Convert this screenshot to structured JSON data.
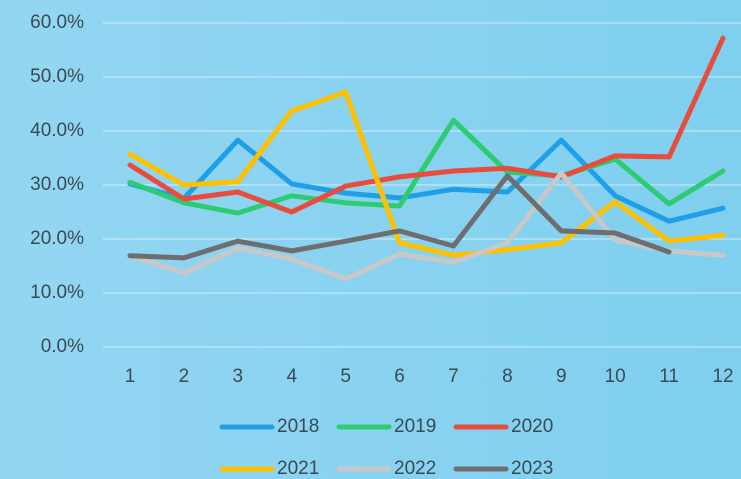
{
  "chart_data": {
    "type": "line",
    "categories": [
      "1",
      "2",
      "3",
      "4",
      "5",
      "6",
      "7",
      "8",
      "9",
      "10",
      "11",
      "12"
    ],
    "series": [
      {
        "name": "2018",
        "color": "#1e9fe8",
        "values": [
          30.2,
          27.5,
          38.3,
          30.2,
          28.5,
          27.6,
          29.2,
          28.7,
          38.3,
          28.0,
          23.3,
          25.7
        ]
      },
      {
        "name": "2019",
        "color": "#2ecc71",
        "values": [
          30.5,
          26.7,
          24.8,
          28.0,
          26.7,
          26.1,
          42.0,
          32.4,
          31.7,
          34.8,
          26.5,
          32.6
        ]
      },
      {
        "name": "2020",
        "color": "#e74c3c",
        "values": [
          33.7,
          27.4,
          28.7,
          25.0,
          29.8,
          31.5,
          32.6,
          33.1,
          31.5,
          35.4,
          35.2,
          57.2
        ]
      },
      {
        "name": "2021",
        "color": "#ffc000",
        "values": [
          35.7,
          30.0,
          30.6,
          43.7,
          47.2,
          19.3,
          17.0,
          18.0,
          19.3,
          26.9,
          19.6,
          20.7
        ]
      },
      {
        "name": "2022",
        "color": "#c8c8c8",
        "values": [
          16.9,
          13.7,
          18.3,
          16.3,
          12.6,
          17.2,
          15.7,
          19.3,
          32.2,
          19.8,
          17.8,
          17.0
        ]
      },
      {
        "name": "2023",
        "color": "#6e6e6e",
        "values": [
          16.9,
          16.5,
          19.6,
          17.8,
          19.6,
          21.5,
          18.7,
          31.7,
          21.5,
          21.1,
          17.6,
          null
        ]
      }
    ],
    "ylim": [
      0,
      60
    ],
    "yticks": [
      {
        "value": 0,
        "label": "0.0%"
      },
      {
        "value": 10,
        "label": "10.0%"
      },
      {
        "value": 20,
        "label": "20.0%"
      },
      {
        "value": 30,
        "label": "30.0%"
      },
      {
        "value": 40,
        "label": "40.0%"
      },
      {
        "value": 50,
        "label": "50.0%"
      },
      {
        "value": 60,
        "label": "60.0%"
      }
    ],
    "grid": true
  }
}
